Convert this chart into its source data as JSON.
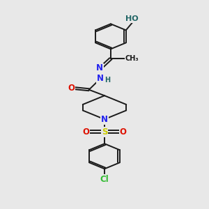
{
  "bg_color": "#e8e8e8",
  "bond_color": "#1a1a1a",
  "bond_width": 1.4,
  "atom_colors": {
    "O": "#dd1100",
    "N": "#2222ee",
    "S": "#cccc00",
    "Cl": "#33bb33",
    "H": "#226666",
    "C": "#1a1a1a"
  },
  "font_size": 8.5
}
